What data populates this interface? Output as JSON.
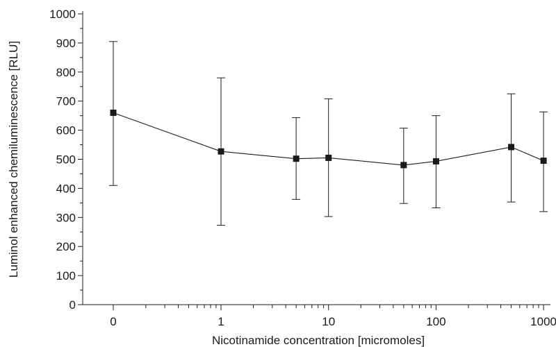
{
  "chart_data": {
    "type": "scatter",
    "title": "",
    "xlabel": "Nicotinamide concentration [micromoles]",
    "ylabel": "Luminol enhanced chemiluminescence [RLU]",
    "x_scale": "log (with 0 shown at the left as a separate category)",
    "x_tick_labels": [
      "0",
      "1",
      "10",
      "100",
      "1000"
    ],
    "x_ticks": [
      0,
      1,
      10,
      100,
      1000
    ],
    "y_ticks": [
      0,
      100,
      200,
      300,
      400,
      500,
      600,
      700,
      800,
      900,
      1000
    ],
    "ylim": [
      0,
      1000
    ],
    "grid": false,
    "legend": "none",
    "marker": "filled square",
    "error_bars": true,
    "series": [
      {
        "x": [
          0,
          1,
          5,
          10,
          50,
          100,
          500,
          1000
        ],
        "y": [
          660,
          527,
          502,
          505,
          480,
          493,
          542,
          495
        ],
        "err_low": [
          410,
          273,
          362,
          303,
          348,
          333,
          353,
          320
        ],
        "err_high": [
          905,
          780,
          643,
          708,
          607,
          650,
          725,
          663
        ]
      }
    ]
  }
}
